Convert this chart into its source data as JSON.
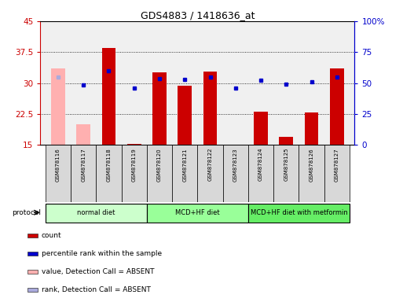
{
  "title": "GDS4883 / 1418636_at",
  "samples": [
    "GSM878116",
    "GSM878117",
    "GSM878118",
    "GSM878119",
    "GSM878120",
    "GSM878121",
    "GSM878122",
    "GSM878123",
    "GSM878124",
    "GSM878125",
    "GSM878126",
    "GSM878127"
  ],
  "bar_values": [
    null,
    null,
    38.5,
    15.2,
    32.5,
    29.3,
    32.7,
    15.1,
    23.0,
    17.0,
    22.8,
    33.5
  ],
  "bar_absent_values": [
    33.5,
    20.0,
    null,
    null,
    null,
    null,
    null,
    null,
    null,
    null,
    null,
    null
  ],
  "bar_base": 15,
  "scatter_values": [
    null,
    29.5,
    33.0,
    28.7,
    31.0,
    30.8,
    31.5,
    28.8,
    30.7,
    29.7,
    30.3,
    31.5
  ],
  "scatter_absent_values": [
    31.5,
    null,
    null,
    null,
    null,
    null,
    null,
    null,
    null,
    null,
    null,
    null
  ],
  "ylim": [
    15,
    45
  ],
  "yticks": [
    15,
    22.5,
    30,
    37.5,
    45
  ],
  "ytick_labels": [
    "15",
    "22.5",
    "30",
    "37.5",
    "45"
  ],
  "y2lim": [
    0,
    100
  ],
  "y2ticks": [
    0,
    25,
    50,
    75,
    100
  ],
  "y2tick_labels": [
    "0",
    "25",
    "50",
    "75",
    "100%"
  ],
  "bar_color": "#cc0000",
  "bar_absent_color": "#ffb0b0",
  "scatter_color": "#0000cc",
  "scatter_absent_color": "#aaaadd",
  "bg_color": "#f0f0f0",
  "protocol_groups": [
    {
      "label": "normal diet",
      "start": 0,
      "end": 3,
      "color": "#ccffcc"
    },
    {
      "label": "MCD+HF diet",
      "start": 4,
      "end": 7,
      "color": "#99ff99"
    },
    {
      "label": "MCD+HF diet with metformin",
      "start": 8,
      "end": 11,
      "color": "#66ee66"
    }
  ],
  "legend_items": [
    {
      "label": "count",
      "color": "#cc0000"
    },
    {
      "label": "percentile rank within the sample",
      "color": "#0000cc"
    },
    {
      "label": "value, Detection Call = ABSENT",
      "color": "#ffb0b0"
    },
    {
      "label": "rank, Detection Call = ABSENT",
      "color": "#aaaadd"
    }
  ],
  "protocol_label": "protocol",
  "y_axis_color": "#cc0000",
  "y2_axis_color": "#0000cc",
  "sample_label_bg": "#d8d8d8",
  "grid_color": "black",
  "grid_style": "dotted"
}
